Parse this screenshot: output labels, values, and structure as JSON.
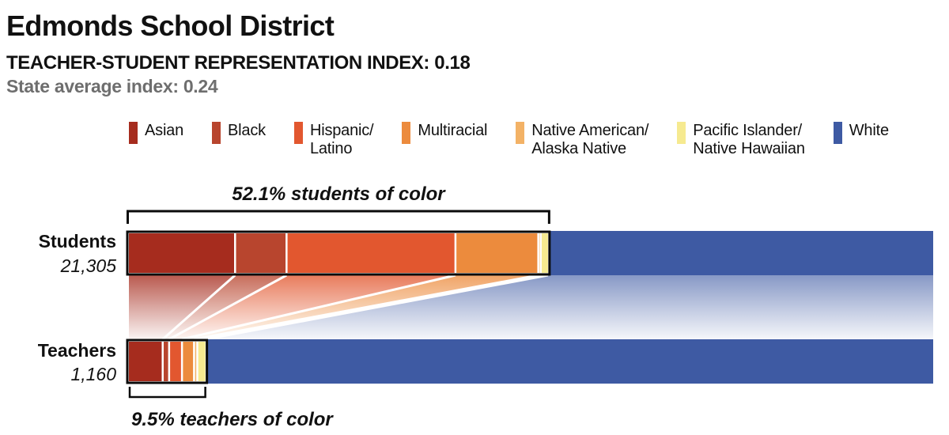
{
  "header": {
    "title": "Edmonds School District",
    "index_label": "TEACHER-STUDENT REPRESENTATION INDEX:",
    "index_value": "0.18",
    "state_label": "State average index:",
    "state_value": "0.24"
  },
  "legend": {
    "labels": [
      "Asian",
      "Black",
      "Hispanic/\nLatino",
      "Multiracial",
      "Native American/\nAlaska Native",
      "Pacific Islander/\nNative Hawaiian",
      "White"
    ]
  },
  "chart_data": {
    "type": "stacked-bar-comparison",
    "title": "Edmonds School District",
    "subtitle": "TEACHER-STUDENT REPRESENTATION INDEX: 0.18",
    "note": "State average index: 0.24",
    "units": "percent of group",
    "xlim": [
      0,
      100
    ],
    "categories": [
      "Asian",
      "Black",
      "Hispanic/Latino",
      "Multiracial",
      "Native American/Alaska Native",
      "Pacific Islander/Native Hawaiian",
      "White"
    ],
    "colors": [
      "#A62C1E",
      "#B8452E",
      "#E2572F",
      "#EC8B3D",
      "#F3B266",
      "#F6EA90",
      "#3E5AA3"
    ],
    "series": [
      {
        "name": "Students",
        "count": "21,305",
        "values": [
          13.2,
          6.4,
          21.0,
          10.3,
          0.3,
          0.9,
          47.9
        ],
        "of_color_pct": 52.1,
        "annotation": "52.1% students of color"
      },
      {
        "name": "Teachers",
        "count": "1,160",
        "values": [
          4.2,
          0.8,
          1.6,
          1.5,
          0.4,
          1.0,
          90.5
        ],
        "of_color_pct": 9.5,
        "annotation": "9.5% teachers of color"
      }
    ]
  }
}
